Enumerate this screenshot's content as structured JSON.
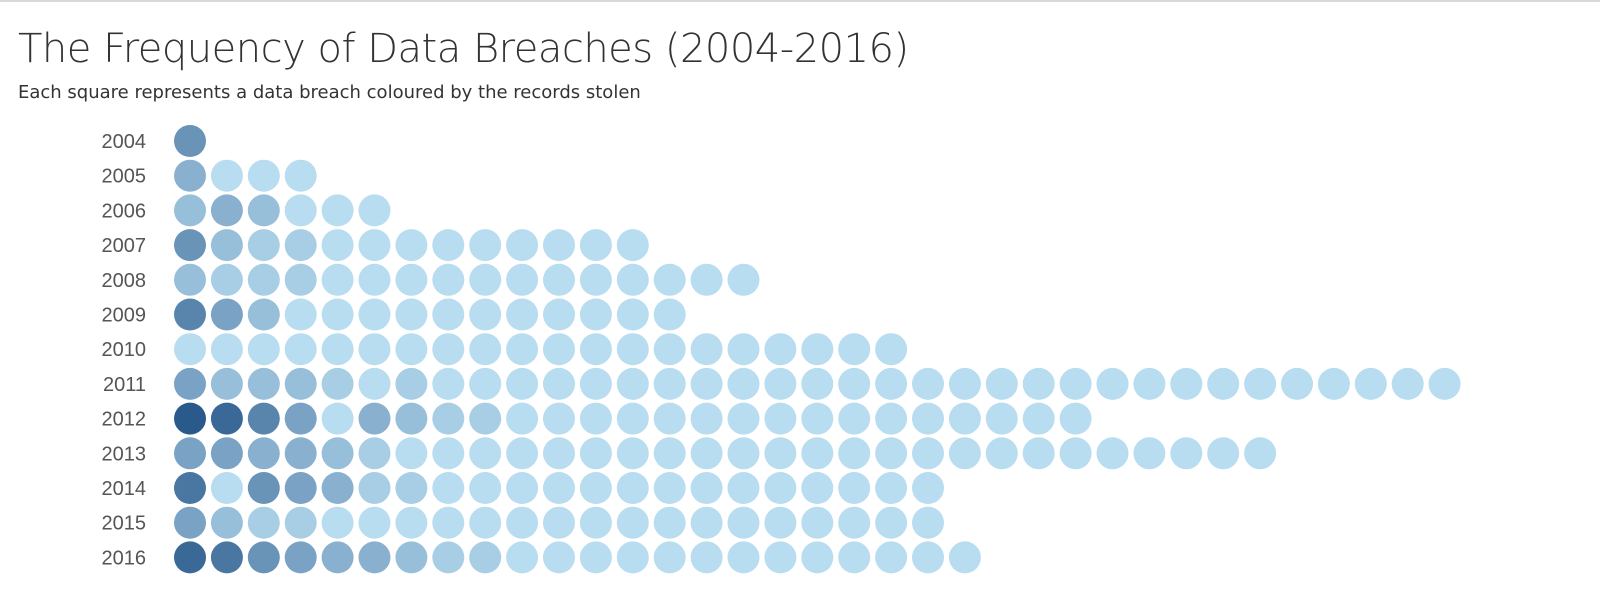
{
  "title": "The Frequency of Data Breaches (2004-2016)",
  "subtitle": "Each square represents a data breach coloured by the records stolen",
  "chart_data": {
    "type": "table",
    "categories": [
      "2004",
      "2005",
      "2006",
      "2007",
      "2008",
      "2009",
      "2010",
      "2011",
      "2012",
      "2013",
      "2014",
      "2015",
      "2016"
    ],
    "values": [
      1,
      4,
      6,
      13,
      16,
      14,
      20,
      35,
      25,
      30,
      21,
      21,
      22
    ],
    "ylabel": "",
    "xlabel": "",
    "color_scale": {
      "low": "#b8dcf0",
      "high": "#2a5a8c"
    },
    "shade_levels": [
      [
        6
      ],
      [
        4,
        1,
        1,
        1
      ],
      [
        3,
        4,
        3,
        1,
        1,
        1
      ],
      [
        6,
        3,
        2,
        2,
        1,
        1,
        1,
        1,
        1,
        1,
        1,
        1,
        1
      ],
      [
        3,
        2,
        2,
        2,
        1,
        1,
        1,
        1,
        1,
        1,
        1,
        1,
        1,
        1,
        1,
        1
      ],
      [
        7,
        5,
        3,
        1,
        1,
        1,
        1,
        1,
        1,
        1,
        1,
        1,
        1,
        1
      ],
      [
        1,
        1,
        1,
        1,
        1,
        1,
        1,
        1,
        1,
        1,
        1,
        1,
        1,
        1,
        1,
        1,
        1,
        1,
        1,
        1
      ],
      [
        5,
        3,
        3,
        3,
        2,
        1,
        2,
        1,
        1,
        1,
        1,
        1,
        1,
        1,
        1,
        1,
        1,
        1,
        1,
        1,
        1,
        1,
        1,
        1,
        1,
        1,
        1,
        1,
        1,
        1,
        1,
        1,
        1,
        1,
        1
      ],
      [
        10,
        9,
        7,
        5,
        1,
        4,
        3,
        2,
        2,
        1,
        1,
        1,
        1,
        1,
        1,
        1,
        1,
        1,
        1,
        1,
        1,
        1,
        1,
        1,
        1
      ],
      [
        5,
        5,
        4,
        4,
        3,
        2,
        1,
        1,
        1,
        1,
        1,
        1,
        1,
        1,
        1,
        1,
        1,
        1,
        1,
        1,
        1,
        1,
        1,
        1,
        1,
        1,
        1,
        1,
        1,
        1
      ],
      [
        8,
        1,
        6,
        5,
        4,
        2,
        2,
        1,
        1,
        1,
        1,
        1,
        1,
        1,
        1,
        1,
        1,
        1,
        1,
        1,
        1
      ],
      [
        5,
        3,
        2,
        2,
        1,
        1,
        1,
        1,
        1,
        1,
        1,
        1,
        1,
        1,
        1,
        1,
        1,
        1,
        1,
        1,
        1
      ],
      [
        9,
        8,
        6,
        5,
        4,
        4,
        3,
        2,
        2,
        1,
        1,
        1,
        1,
        1,
        1,
        1,
        1,
        1,
        1,
        1,
        1,
        1
      ]
    ]
  }
}
